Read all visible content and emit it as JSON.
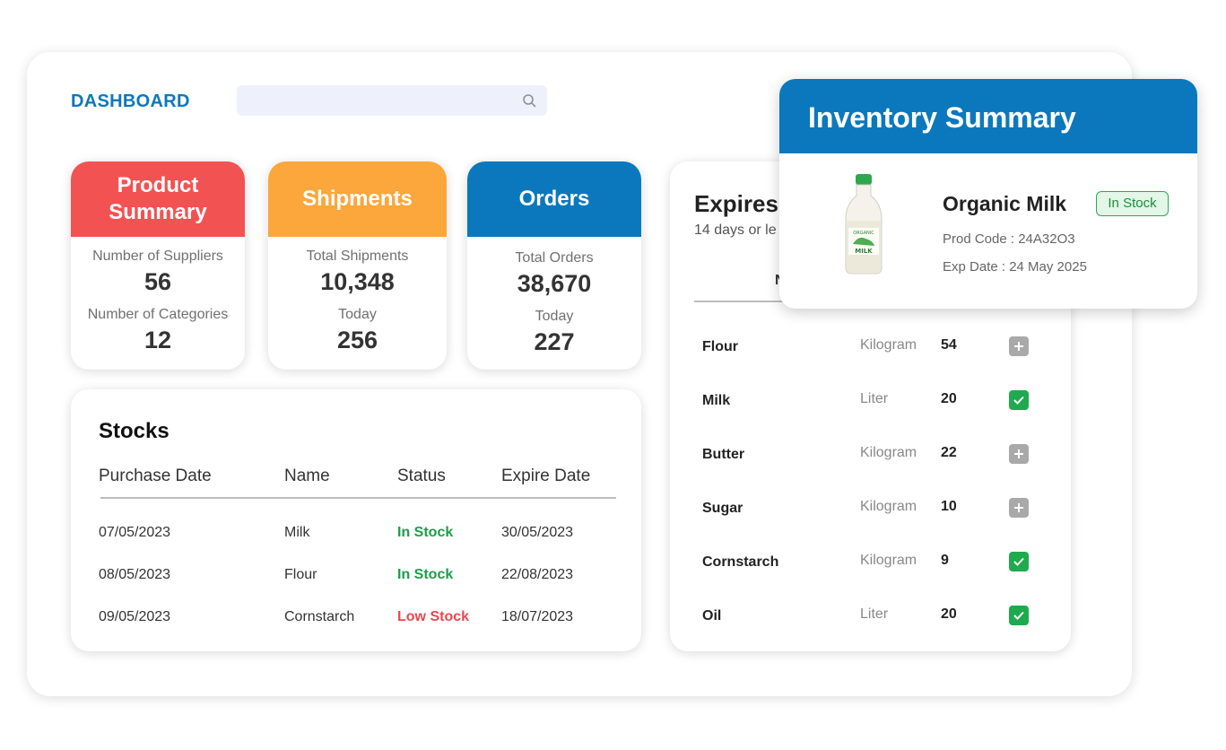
{
  "header": {
    "title": "DASHBOARD",
    "search_placeholder": ""
  },
  "product_summary": {
    "title": "Product Summary",
    "suppliers_label": "Number of Suppliers",
    "suppliers_value": "56",
    "categories_label": "Number of Categories",
    "categories_value": "12",
    "color": "#f35252"
  },
  "shipments": {
    "title": "Shipments",
    "total_label": "Total Shipments",
    "total_value": "10,348",
    "today_label": "Today",
    "today_value": "256",
    "color": "#fba73b"
  },
  "orders": {
    "title": "Orders",
    "total_label": "Total Orders",
    "total_value": "38,670",
    "today_label": "Today",
    "today_value": "227",
    "color": "#0b78bd"
  },
  "stocks": {
    "title": "Stocks",
    "columns": [
      "Purchase Date",
      "Name",
      "Status",
      "Expire Date"
    ],
    "rows": [
      {
        "purchase": "07/05/2023",
        "name": "Milk",
        "status": "In Stock",
        "expire": "30/05/2023"
      },
      {
        "purchase": "08/05/2023",
        "name": "Flour",
        "status": "In Stock",
        "expire": "22/08/2023"
      },
      {
        "purchase": "09/05/2023",
        "name": "Cornstarch",
        "status": "Low Stock",
        "expire": "18/07/2023"
      }
    ]
  },
  "expires": {
    "title": "Expires",
    "subtitle": "14 days or le",
    "col_visible": "N",
    "rows": [
      {
        "name": "Flour",
        "unit": "Kilogram",
        "qty": "54",
        "checked": false
      },
      {
        "name": "Milk",
        "unit": "Liter",
        "qty": "20",
        "checked": true
      },
      {
        "name": "Butter",
        "unit": "Kilogram",
        "qty": "22",
        "checked": false
      },
      {
        "name": "Sugar",
        "unit": "Kilogram",
        "qty": "10",
        "checked": false
      },
      {
        "name": "Cornstarch",
        "unit": "Kilogram",
        "qty": "9",
        "checked": true
      },
      {
        "name": "Oil",
        "unit": "Liter",
        "qty": "20",
        "checked": true
      }
    ]
  },
  "inventory": {
    "title": "Inventory Summary",
    "product_name": "Organic Milk",
    "badge": "In Stock",
    "prod_code": "Prod Code : 24A32O3",
    "exp_date": "Exp Date : 24 May 2025",
    "bottle_label_top": "ORGANIC",
    "bottle_label_bottom": "MILK"
  }
}
